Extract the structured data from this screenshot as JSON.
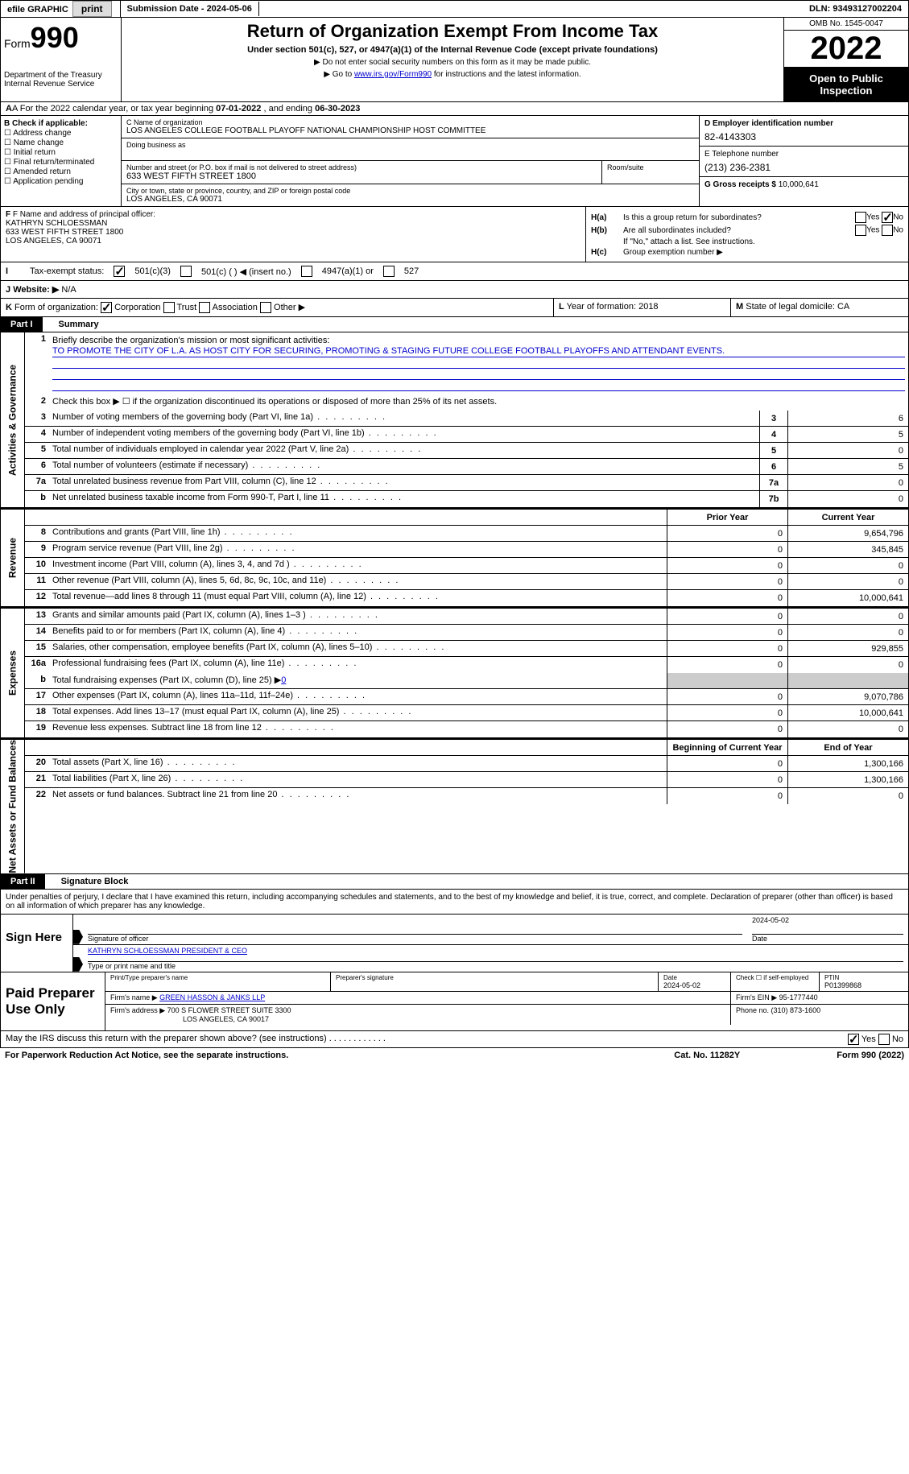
{
  "top": {
    "efile": "efile GRAPHIC",
    "print": "print",
    "subdate_label": "Submission Date - ",
    "subdate": "2024-05-06",
    "dln_label": "DLN: ",
    "dln": "93493127002204"
  },
  "header": {
    "form_label": "Form",
    "form_num": "990",
    "dept": "Department of the Treasury\nInternal Revenue Service",
    "title": "Return of Organization Exempt From Income Tax",
    "subtitle": "Under section 501(c), 527, or 4947(a)(1) of the Internal Revenue Code (except private foundations)",
    "note1": "▶ Do not enter social security numbers on this form as it may be made public.",
    "note2_pre": "▶ Go to ",
    "note2_link": "www.irs.gov/Form990",
    "note2_post": " for instructions and the latest information.",
    "omb": "OMB No. 1545-0047",
    "year": "2022",
    "open": "Open to Public Inspection"
  },
  "rowA": {
    "text_pre": "A For the 2022 calendar year, or tax year beginning ",
    "begin": "07-01-2022",
    "mid": "   , and ending ",
    "end": "06-30-2023"
  },
  "colB": {
    "label": "B Check if applicable:",
    "items": [
      "Address change",
      "Name change",
      "Initial return",
      "Final return/terminated",
      "Amended return",
      "Application pending"
    ]
  },
  "colC": {
    "name_label": "C Name of organization",
    "name": "LOS ANGELES COLLEGE FOOTBALL PLAYOFF NATIONAL CHAMPIONSHIP HOST COMMITTEE",
    "dba_label": "Doing business as",
    "dba": "",
    "addr_label": "Number and street (or P.O. box if mail is not delivered to street address)",
    "addr": "633 WEST FIFTH STREET 1800",
    "room_label": "Room/suite",
    "room": "",
    "city_label": "City or town, state or province, country, and ZIP or foreign postal code",
    "city": "LOS ANGELES, CA  90071"
  },
  "colD": {
    "ein_label": "D Employer identification number",
    "ein": "82-4143303",
    "phone_label": "E Telephone number",
    "phone": "(213) 236-2381",
    "gross_label": "G Gross receipts $ ",
    "gross": "10,000,641"
  },
  "rowF": {
    "label": "F Name and address of principal officer:",
    "name": "KATHRYN SCHLOESSMAN",
    "addr": "633 WEST FIFTH STREET 1800\nLOS ANGELES, CA  90071"
  },
  "rowH": {
    "ha_label": "H(a)",
    "ha_text": "Is this a group return for subordinates?",
    "hb_label": "H(b)",
    "hb_text": "Are all subordinates included?",
    "hb_note": "If \"No,\" attach a list. See instructions.",
    "hc_label": "H(c)",
    "hc_text": "Group exemption number ▶",
    "yes": "Yes",
    "no": "No"
  },
  "rowI": {
    "label": "I",
    "text": "Tax-exempt status:",
    "opt1": "501(c)(3)",
    "opt2": "501(c) (  ) ◀ (insert no.)",
    "opt3": "4947(a)(1) or",
    "opt4": "527"
  },
  "rowJ": {
    "label": "J",
    "text": "Website: ▶",
    "val": "N/A"
  },
  "rowK": {
    "label": "K",
    "text": "Form of organization:",
    "opts": [
      "Corporation",
      "Trust",
      "Association",
      "Other ▶"
    ],
    "l_label": "L",
    "l_text": "Year of formation: ",
    "l_val": "2018",
    "m_label": "M",
    "m_text": "State of legal domicile: ",
    "m_val": "CA"
  },
  "part1": {
    "num": "Part I",
    "title": "Summary"
  },
  "summary": {
    "line1_label": "1",
    "line1_text": "Briefly describe the organization's mission or most significant activities:",
    "line1_val": "TO PROMOTE THE CITY OF L.A. AS HOST CITY FOR SECURING, PROMOTING & STAGING FUTURE COLLEGE FOOTBALL PLAYOFFS AND ATTENDANT EVENTS.",
    "line2_label": "2",
    "line2_text": "Check this box ▶ ☐ if the organization discontinued its operations or disposed of more than 25% of its net assets.",
    "lines": [
      {
        "n": "3",
        "d": "Number of voting members of the governing body (Part VI, line 1a)",
        "box": "3",
        "v": "6"
      },
      {
        "n": "4",
        "d": "Number of independent voting members of the governing body (Part VI, line 1b)",
        "box": "4",
        "v": "5"
      },
      {
        "n": "5",
        "d": "Total number of individuals employed in calendar year 2022 (Part V, line 2a)",
        "box": "5",
        "v": "0"
      },
      {
        "n": "6",
        "d": "Total number of volunteers (estimate if necessary)",
        "box": "6",
        "v": "5"
      },
      {
        "n": "7a",
        "d": "Total unrelated business revenue from Part VIII, column (C), line 12",
        "box": "7a",
        "v": "0"
      },
      {
        "n": "b",
        "d": "Net unrelated business taxable income from Form 990-T, Part I, line 11",
        "box": "7b",
        "v": "0"
      }
    ],
    "col_prior": "Prior Year",
    "col_current": "Current Year",
    "rev_lines": [
      {
        "n": "8",
        "d": "Contributions and grants (Part VIII, line 1h)",
        "p": "0",
        "c": "9,654,796"
      },
      {
        "n": "9",
        "d": "Program service revenue (Part VIII, line 2g)",
        "p": "0",
        "c": "345,845"
      },
      {
        "n": "10",
        "d": "Investment income (Part VIII, column (A), lines 3, 4, and 7d )",
        "p": "0",
        "c": "0"
      },
      {
        "n": "11",
        "d": "Other revenue (Part VIII, column (A), lines 5, 6d, 8c, 9c, 10c, and 11e)",
        "p": "0",
        "c": "0"
      },
      {
        "n": "12",
        "d": "Total revenue—add lines 8 through 11 (must equal Part VIII, column (A), line 12)",
        "p": "0",
        "c": "10,000,641"
      }
    ],
    "exp_lines": [
      {
        "n": "13",
        "d": "Grants and similar amounts paid (Part IX, column (A), lines 1–3 )",
        "p": "0",
        "c": "0"
      },
      {
        "n": "14",
        "d": "Benefits paid to or for members (Part IX, column (A), line 4)",
        "p": "0",
        "c": "0"
      },
      {
        "n": "15",
        "d": "Salaries, other compensation, employee benefits (Part IX, column (A), lines 5–10)",
        "p": "0",
        "c": "929,855"
      },
      {
        "n": "16a",
        "d": "Professional fundraising fees (Part IX, column (A), line 11e)",
        "p": "0",
        "c": "0"
      }
    ],
    "line16b_n": "b",
    "line16b_d_pre": "Total fundraising expenses (Part IX, column (D), line 25) ▶",
    "line16b_val": "0",
    "exp_lines2": [
      {
        "n": "17",
        "d": "Other expenses (Part IX, column (A), lines 11a–11d, 11f–24e)",
        "p": "0",
        "c": "9,070,786"
      },
      {
        "n": "18",
        "d": "Total expenses. Add lines 13–17 (must equal Part IX, column (A), line 25)",
        "p": "0",
        "c": "10,000,641"
      },
      {
        "n": "19",
        "d": "Revenue less expenses. Subtract line 18 from line 12",
        "p": "0",
        "c": "0"
      }
    ],
    "col_begin": "Beginning of Current Year",
    "col_end": "End of Year",
    "na_lines": [
      {
        "n": "20",
        "d": "Total assets (Part X, line 16)",
        "p": "0",
        "c": "1,300,166"
      },
      {
        "n": "21",
        "d": "Total liabilities (Part X, line 26)",
        "p": "0",
        "c": "1,300,166"
      },
      {
        "n": "22",
        "d": "Net assets or fund balances. Subtract line 21 from line 20",
        "p": "0",
        "c": "0"
      }
    ],
    "side_ag": "Activities & Governance",
    "side_rev": "Revenue",
    "side_exp": "Expenses",
    "side_na": "Net Assets or Fund Balances"
  },
  "part2": {
    "num": "Part II",
    "title": "Signature Block"
  },
  "sig": {
    "perjury": "Under penalties of perjury, I declare that I have examined this return, including accompanying schedules and statements, and to the best of my knowledge and belief, it is true, correct, and complete. Declaration of preparer (other than officer) is based on all information of which preparer has any knowledge.",
    "sign_here": "Sign Here",
    "sig_officer": "Signature of officer",
    "sig_date_label": "Date",
    "sig_date": "2024-05-02",
    "name_title": "KATHRYN SCHLOESSMAN  PRESIDENT & CEO",
    "type_name": "Type or print name and title"
  },
  "prep": {
    "label": "Paid Preparer Use Only",
    "print_name_label": "Print/Type preparer's name",
    "print_name": "",
    "sig_label": "Preparer's signature",
    "date_label": "Date",
    "date": "2024-05-02",
    "check_label": "Check ☐ if self-employed",
    "ptin_label": "PTIN",
    "ptin": "P01399868",
    "firm_name_label": "Firm's name     ▶ ",
    "firm_name": "GREEN HASSON & JANKS LLP",
    "firm_ein_label": "Firm's EIN ▶ ",
    "firm_ein": "95-1777440",
    "firm_addr_label": "Firm's address ▶ ",
    "firm_addr": "700 S FLOWER STREET SUITE 3300",
    "firm_city": "LOS ANGELES, CA  90017",
    "phone_label": "Phone no. ",
    "phone": "(310) 873-1600"
  },
  "footer": {
    "discuss": "May the IRS discuss this return with the preparer shown above? (see instructions)",
    "yes": "Yes",
    "no": "No",
    "paperwork": "For Paperwork Reduction Act Notice, see the separate instructions.",
    "cat": "Cat. No. 11282Y",
    "form": "Form 990 (2022)"
  }
}
